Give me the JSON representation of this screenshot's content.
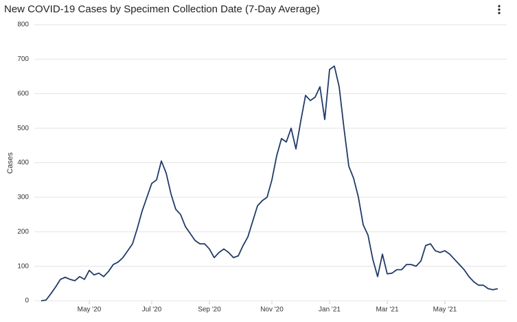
{
  "chart_data": {
    "type": "line",
    "title": "New COVID-19 Cases by Specimen Collection Date (7-Day Average)",
    "y_label": "Cases",
    "categories": [
      null,
      null,
      null,
      null,
      null,
      null,
      null,
      null,
      null,
      null,
      "May '20",
      null,
      null,
      null,
      null,
      null,
      null,
      null,
      null,
      null,
      null,
      null,
      null,
      "Jul '20",
      null,
      null,
      null,
      null,
      null,
      null,
      null,
      null,
      null,
      null,
      null,
      "Sep '20",
      null,
      null,
      null,
      null,
      null,
      null,
      null,
      null,
      null,
      null,
      null,
      null,
      "Nov '20",
      null,
      null,
      null,
      null,
      null,
      null,
      null,
      null,
      null,
      null,
      null,
      "Jan '21",
      null,
      null,
      null,
      null,
      null,
      null,
      null,
      null,
      null,
      null,
      null,
      "Mar '21",
      null,
      null,
      null,
      null,
      null,
      null,
      null,
      null,
      null,
      null,
      null,
      "May '21",
      null,
      null,
      null,
      null,
      null,
      null,
      null,
      null,
      null,
      null,
      null
    ],
    "values": [
      0,
      2,
      20,
      40,
      62,
      68,
      62,
      58,
      70,
      62,
      88,
      75,
      80,
      70,
      85,
      105,
      112,
      125,
      145,
      165,
      210,
      260,
      300,
      340,
      350,
      405,
      370,
      310,
      265,
      250,
      215,
      195,
      175,
      165,
      165,
      150,
      125,
      140,
      150,
      140,
      125,
      130,
      160,
      185,
      230,
      275,
      290,
      300,
      350,
      420,
      470,
      460,
      500,
      440,
      520,
      595,
      580,
      590,
      620,
      525,
      670,
      680,
      620,
      500,
      390,
      355,
      300,
      220,
      190,
      120,
      70,
      135,
      78,
      80,
      90,
      90,
      105,
      105,
      100,
      115,
      160,
      165,
      145,
      140,
      145,
      135,
      120,
      105,
      90,
      70,
      55,
      45,
      45,
      35,
      32,
      35
    ],
    "color": "#1f3a68",
    "ylim": [
      0,
      800
    ],
    "yticks": [
      0,
      100,
      200,
      300,
      400,
      500,
      600,
      700,
      800
    ],
    "grid": true
  }
}
